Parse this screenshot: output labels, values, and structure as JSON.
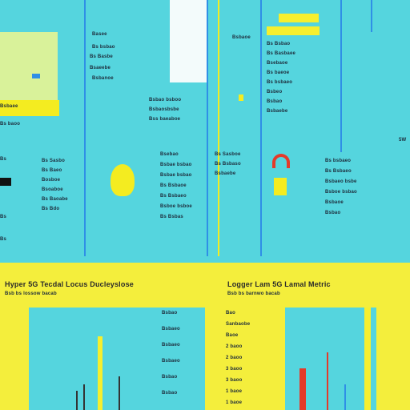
{
  "header": {
    "left_title": "Hyper 5G Tecdal Locus Ducleyslose",
    "left_subtitle": "Bsb bs lossow bacab",
    "right_title": "Logger Lam 5G Lamal Metric",
    "right_subtitle": "Bsb bs barnwo bacab"
  },
  "top_labels": [
    "Basee",
    "Bs bsbao",
    "Bs Basbe",
    "Bsaeebe",
    "Bsbanoe",
    "Bsbaee",
    "Bs baoo",
    "Bsbaoe"
  ],
  "col_a": [
    "Bs Sasbo",
    "Bs Baeo",
    "Bosboe",
    "Bsoaboe",
    "Bs Baoabe",
    "Bs Bdo"
  ],
  "col_b": [
    "Bsbao bsboo",
    "Bsbaosbsbe",
    "Bss baeaboe"
  ],
  "col_c": [
    "Bsebao",
    "Bsbae bsbao",
    "Bsbae bsbao",
    "Bs Bsbaoe",
    "Bs Bsbaeo",
    "Bsboe bsboe",
    "Bs Bsbas"
  ],
  "col_d": [
    "Bs Bsbao",
    "Bs Basbaee",
    "Bsebaoe",
    "Bs baeoe",
    "Bs bsbaeo",
    "Bsbeo",
    "Bsbao",
    "Bsbaebe"
  ],
  "col_e": [
    "Bs Sasboe",
    "Bs Bsbaso",
    "Bsbaebe"
  ],
  "col_f": [
    "Bs bsbaeo",
    "Bs Bsbaeo",
    "Bsbaeo bsbe",
    "Bsboe bsbao",
    "Bsbaoe",
    "Bsbao"
  ],
  "side": [
    "Bs",
    "Bs",
    "Bs",
    "5W"
  ],
  "list": [
    "Bao",
    "Sanbaobe",
    "Baoe",
    "2 baoo",
    "2 baoo",
    "3 baoo",
    "3 baoo",
    "1 baoe",
    "1 baoe"
  ],
  "list_left": [
    "Bsbao",
    "Bsbaeo",
    "Bsbaeo",
    "Bsbaeo",
    "Bsbao",
    "Bsbao"
  ]
}
